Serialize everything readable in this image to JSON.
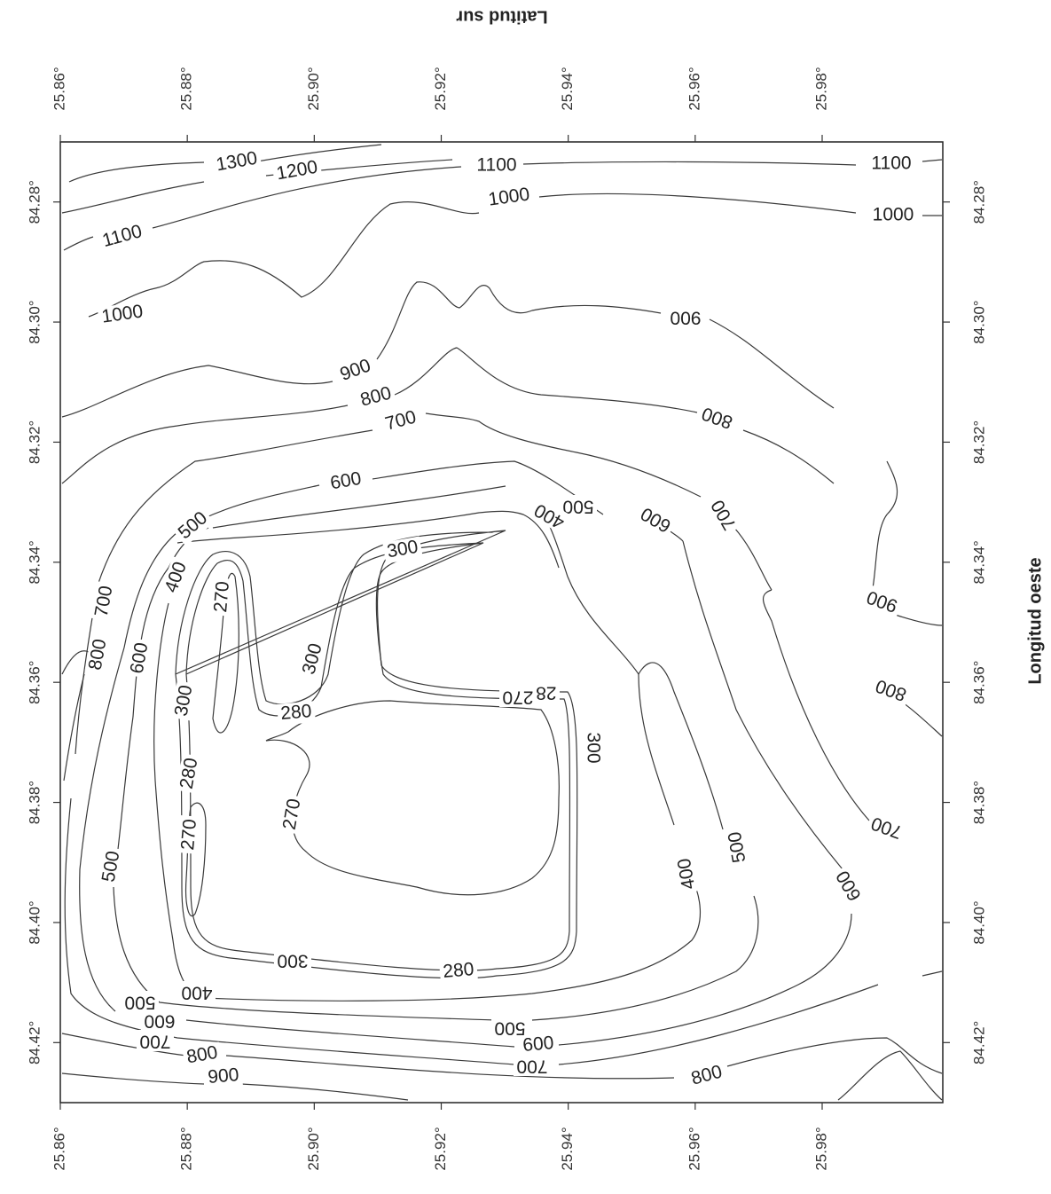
{
  "chart_data": {
    "type": "contour",
    "title": "",
    "xlabel": "Longitud oeste",
    "ylabel": "Latitud sur",
    "x_axis": {
      "label": "Longitud oeste",
      "range": [
        84.27,
        84.43
      ],
      "ticks": [
        84.28,
        84.3,
        84.32,
        84.34,
        84.36,
        84.38,
        84.4,
        84.42
      ],
      "tick_labels": [
        "84.28°",
        "84.30°",
        "84.32°",
        "84.34°",
        "84.36°",
        "84.38°",
        "84.40°",
        "84.42°"
      ]
    },
    "y_axis": {
      "label": "Latitud sur",
      "range": [
        25.86,
        25.999
      ],
      "ticks": [
        25.86,
        25.88,
        25.9,
        25.92,
        25.94,
        25.96,
        25.98
      ],
      "tick_labels": [
        "25.86°",
        "25.88°",
        "25.90°",
        "25.92°",
        "25.94°",
        "25.96°",
        "25.98°"
      ]
    },
    "grid": false,
    "legend": "none",
    "contour_levels": [
      270,
      280,
      300,
      400,
      500,
      600,
      700,
      800,
      900,
      1000,
      1100,
      1200,
      1300
    ],
    "contour_labels": [
      {
        "text": "1300",
        "level": 1300
      },
      {
        "text": "1200",
        "level": 1200
      },
      {
        "text": "1100",
        "level": 1100
      },
      {
        "text": "1100",
        "level": 1100
      },
      {
        "text": "1100",
        "level": 1100
      },
      {
        "text": "1000",
        "level": 1000
      },
      {
        "text": "1000",
        "level": 1000
      },
      {
        "text": "1000",
        "level": 1000
      },
      {
        "text": "900",
        "level": 900
      },
      {
        "text": "900",
        "level": 900
      },
      {
        "text": "900",
        "level": 900
      },
      {
        "text": "900",
        "level": 900
      },
      {
        "text": "800",
        "level": 800
      },
      {
        "text": "800",
        "level": 800
      },
      {
        "text": "800",
        "level": 800
      },
      {
        "text": "800",
        "level": 800
      },
      {
        "text": "800",
        "level": 800
      },
      {
        "text": "800",
        "level": 800
      },
      {
        "text": "700",
        "level": 700
      },
      {
        "text": "700",
        "level": 700
      },
      {
        "text": "700",
        "level": 700
      },
      {
        "text": "700",
        "level": 700
      },
      {
        "text": "700",
        "level": 700
      },
      {
        "text": "700",
        "level": 700
      },
      {
        "text": "600",
        "level": 600
      },
      {
        "text": "600",
        "level": 600
      },
      {
        "text": "600",
        "level": 600
      },
      {
        "text": "600",
        "level": 600
      },
      {
        "text": "600",
        "level": 600
      },
      {
        "text": "600",
        "level": 600
      },
      {
        "text": "500",
        "level": 500
      },
      {
        "text": "500",
        "level": 500
      },
      {
        "text": "500",
        "level": 500
      },
      {
        "text": "500",
        "level": 500
      },
      {
        "text": "500",
        "level": 500
      },
      {
        "text": "500",
        "level": 500
      },
      {
        "text": "400",
        "level": 400
      },
      {
        "text": "400",
        "level": 400
      },
      {
        "text": "400",
        "level": 400
      },
      {
        "text": "400",
        "level": 400
      },
      {
        "text": "300",
        "level": 300
      },
      {
        "text": "300",
        "level": 300
      },
      {
        "text": "300",
        "level": 300
      },
      {
        "text": "300",
        "level": 300
      },
      {
        "text": "300",
        "level": 300
      },
      {
        "text": "280",
        "level": 280
      },
      {
        "text": "280",
        "level": 280
      },
      {
        "text": "280",
        "level": 280
      },
      {
        "text": "280",
        "level": 280
      },
      {
        "text": "270",
        "level": 270
      },
      {
        "text": "270",
        "level": 270
      },
      {
        "text": "270",
        "level": 270
      },
      {
        "text": "270",
        "level": 270
      }
    ]
  }
}
